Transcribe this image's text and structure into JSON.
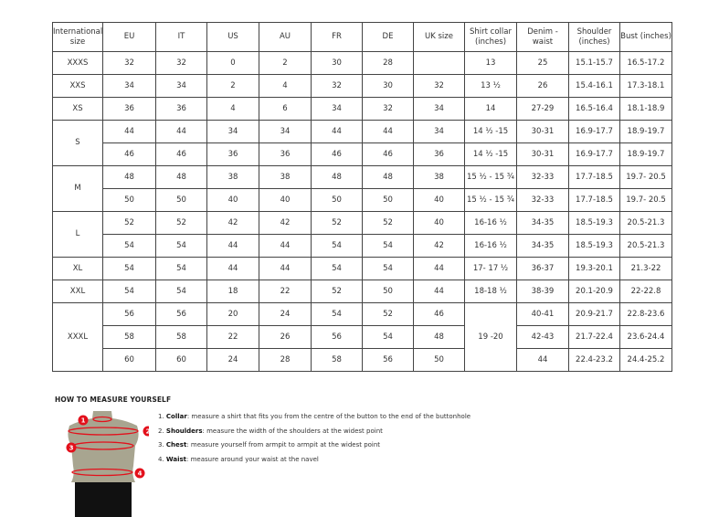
{
  "table": {
    "headers": [
      "International size",
      "EU",
      "IT",
      "US",
      "AU",
      "FR",
      "DE",
      "UK size",
      "Shirt collar (inches)",
      "Denim - waist",
      "Shoulder (inches)",
      "Bust (inches)"
    ],
    "groups": [
      {
        "size": "XXXS",
        "rows": [
          [
            "32",
            "32",
            "0",
            "2",
            "30",
            "28",
            "",
            "13",
            "25",
            "15.1-15.7",
            "16.5-17.2"
          ]
        ]
      },
      {
        "size": "XXS",
        "rows": [
          [
            "34",
            "34",
            "2",
            "4",
            "32",
            "30",
            "32",
            "13 ½",
            "26",
            "15.4-16.1",
            "17.3-18.1"
          ]
        ]
      },
      {
        "size": "XS",
        "rows": [
          [
            "36",
            "36",
            "4",
            "6",
            "34",
            "32",
            "34",
            "14",
            "27-29",
            "16.5-16.4",
            "18.1-18.9"
          ]
        ]
      },
      {
        "size": "S",
        "rows": [
          [
            "44",
            "44",
            "34",
            "34",
            "44",
            "44",
            "34",
            "14 ½ -15",
            "30-31",
            "16.9-17.7",
            "18.9-19.7"
          ],
          [
            "46",
            "46",
            "36",
            "36",
            "46",
            "46",
            "36",
            "14 ½ -15",
            "30-31",
            "16.9-17.7",
            "18.9-19.7"
          ]
        ]
      },
      {
        "size": "M",
        "rows": [
          [
            "48",
            "48",
            "38",
            "38",
            "48",
            "48",
            "38",
            "15 ½ - 15 ¾",
            "32-33",
            "17.7-18.5",
            "19.7- 20.5"
          ],
          [
            "50",
            "50",
            "40",
            "40",
            "50",
            "50",
            "40",
            "15 ½ - 15 ¾",
            "32-33",
            "17.7-18.5",
            "19.7- 20.5"
          ]
        ]
      },
      {
        "size": "L",
        "rows": [
          [
            "52",
            "52",
            "42",
            "42",
            "52",
            "52",
            "40",
            "16-16 ½",
            "34-35",
            "18.5-19.3",
            "20.5-21.3"
          ],
          [
            "54",
            "54",
            "44",
            "44",
            "54",
            "54",
            "42",
            "16-16 ½",
            "34-35",
            "18.5-19.3",
            "20.5-21.3"
          ]
        ]
      },
      {
        "size": "XL",
        "rows": [
          [
            "54",
            "54",
            "44",
            "44",
            "54",
            "54",
            "44",
            "17- 17 ½",
            "36-37",
            "19.3-20.1",
            "21.3-22"
          ]
        ]
      },
      {
        "size": "XXL",
        "rows": [
          [
            "54",
            "54",
            "18",
            "22",
            "52",
            "50",
            "44",
            "18-18 ½",
            "38-39",
            "20.1-20.9",
            "22-22.8"
          ]
        ]
      },
      {
        "size": "XXXL",
        "collar_merged": "19 -20",
        "rows": [
          [
            "56",
            "56",
            "20",
            "24",
            "54",
            "52",
            "46",
            "40-41",
            "20.9-21.7",
            "22.8-23.6"
          ],
          [
            "58",
            "58",
            "22",
            "26",
            "56",
            "54",
            "48",
            "42-43",
            "21.7-22.4",
            "23.6-24.4"
          ],
          [
            "60",
            "60",
            "24",
            "28",
            "58",
            "56",
            "50",
            "44",
            "22.4-23.2",
            "24.4-25.2"
          ]
        ]
      }
    ]
  },
  "howto": {
    "title": "HOW TO MEASURE YOURSELF",
    "steps": [
      {
        "num": "1.",
        "term": "Collar",
        "text": ": measure a shirt that fits you from the centre of the button to the end of the buttonhole"
      },
      {
        "num": "2.",
        "term": "Shoulders",
        "text": ": measure the width of the shoulders at the widest point"
      },
      {
        "num": "3.",
        "term": "Chest",
        "text": ": measure yourself from armpit to armpit at the widest point"
      },
      {
        "num": "4.",
        "term": "Waist",
        "text": ": measure around your waist at the navel"
      }
    ],
    "markers": [
      "1",
      "2",
      "3",
      "4"
    ],
    "accent": "#e3101b"
  }
}
